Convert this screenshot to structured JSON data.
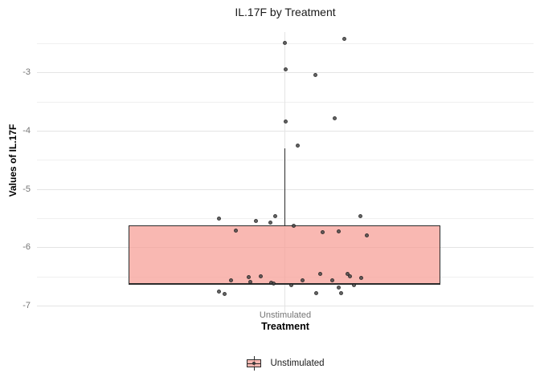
{
  "chart_data": {
    "type": "boxplot",
    "title": "IL.17F by Treatment",
    "xlabel": "Treatment",
    "ylabel": "Values of IL.17F",
    "categories": [
      "Unstimulated"
    ],
    "y_domain": [
      -7.15,
      -2.31
    ],
    "yticks": [
      -3,
      -4,
      -5,
      -6,
      -7
    ],
    "yticks_minor": [
      -2.5,
      -3.5,
      -4.5,
      -5.5,
      -6.5
    ],
    "grid": true,
    "legend_position": "bottom",
    "series": [
      {
        "name": "Unstimulated",
        "box": {
          "q1": -6.63,
          "median": -6.63,
          "q3": -5.63,
          "whisker_low": -6.63,
          "whisker_high": -4.31
        },
        "points": [
          {
            "dx": 74,
            "y": -2.42
          },
          {
            "dx": 0,
            "y": -2.49
          },
          {
            "dx": 1,
            "y": -2.95
          },
          {
            "dx": 38,
            "y": -3.04
          },
          {
            "dx": 62,
            "y": -3.79
          },
          {
            "dx": 1,
            "y": -3.84
          },
          {
            "dx": 16,
            "y": -4.25
          },
          {
            "dx": -82,
            "y": -5.5
          },
          {
            "dx": -61,
            "y": -5.71
          },
          {
            "dx": -36,
            "y": -5.55
          },
          {
            "dx": -18,
            "y": -5.58
          },
          {
            "dx": -12,
            "y": -5.47
          },
          {
            "dx": 11,
            "y": -5.63
          },
          {
            "dx": 47,
            "y": -5.74
          },
          {
            "dx": 67,
            "y": -5.73
          },
          {
            "dx": 94,
            "y": -5.46
          },
          {
            "dx": 102,
            "y": -5.8
          },
          {
            "dx": -67,
            "y": -6.56
          },
          {
            "dx": -82,
            "y": -6.76
          },
          {
            "dx": -75,
            "y": -6.8
          },
          {
            "dx": -45,
            "y": -6.51
          },
          {
            "dx": -43,
            "y": -6.59
          },
          {
            "dx": -30,
            "y": -6.5
          },
          {
            "dx": -17,
            "y": -6.6
          },
          {
            "dx": -14,
            "y": -6.62
          },
          {
            "dx": 8,
            "y": -6.65
          },
          {
            "dx": 22,
            "y": -6.56
          },
          {
            "dx": 39,
            "y": -6.78
          },
          {
            "dx": 44,
            "y": -6.45
          },
          {
            "dx": 59,
            "y": -6.56
          },
          {
            "dx": 67,
            "y": -6.69
          },
          {
            "dx": 70,
            "y": -6.78
          },
          {
            "dx": 78,
            "y": -6.45
          },
          {
            "dx": 81,
            "y": -6.49
          },
          {
            "dx": 86,
            "y": -6.65
          },
          {
            "dx": 95,
            "y": -6.53
          }
        ]
      }
    ]
  },
  "colors": {
    "box_fill": "#F9B8B2",
    "box_stroke": "#2B2B2B",
    "point": "#4A4A4A",
    "grid_major": "#E4E4E4",
    "grid_minor": "#F0F0F0",
    "axis_text": "#757575",
    "title_text": "#1A1A1A"
  }
}
